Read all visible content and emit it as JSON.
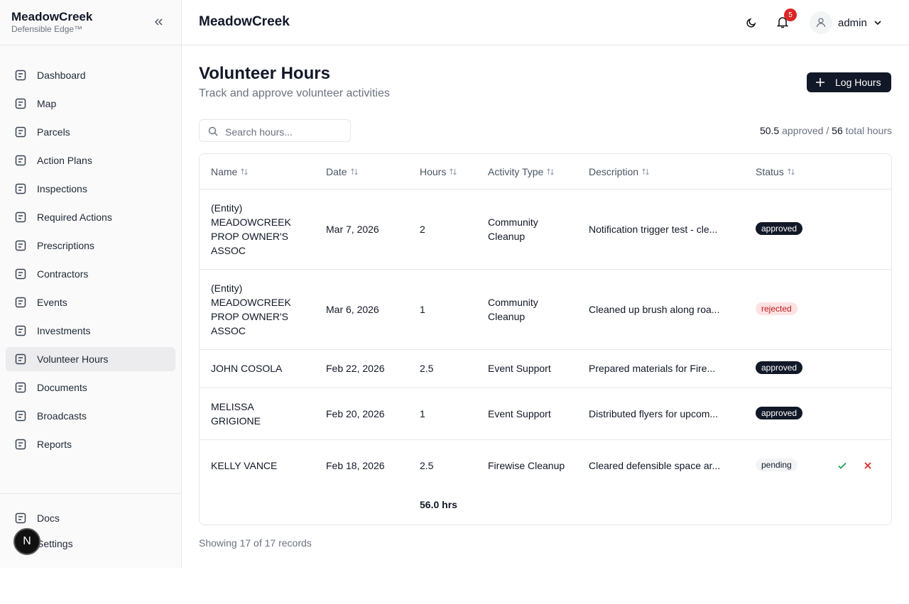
{
  "sidebar": {
    "brand": "MeadowCreek",
    "tagline": "Defensible Edge™",
    "nav": [
      "Dashboard",
      "Map",
      "Parcels",
      "Action Plans",
      "Inspections",
      "Required Actions",
      "Prescriptions",
      "Contractors",
      "Events",
      "Investments",
      "Volunteer Hours",
      "Documents",
      "Broadcasts",
      "Reports"
    ],
    "active": 10,
    "footer": [
      "Docs",
      "Settings"
    ],
    "badge": "N"
  },
  "header": {
    "title": "MeadowCreek",
    "notifications": "5",
    "user": "admin"
  },
  "page": {
    "title": "Volunteer Hours",
    "subtitle": "Track and approve volunteer activities",
    "action": "Log Hours",
    "search_placeholder": "Search hours...",
    "summary": {
      "approved": "50.5",
      "approved_label": "approved /",
      "total": "56",
      "total_label": "total hours"
    }
  },
  "table": {
    "columns": [
      "Name",
      "Date",
      "Hours",
      "Activity Type",
      "Description",
      "Status"
    ],
    "rows": [
      {
        "name": "(Entity) MEADOWCREEK PROP OWNER'S ASSOC",
        "date": "Mar 7, 2026",
        "hours": "2",
        "activity": "Community Cleanup",
        "description": "Notification trigger test - cle...",
        "status": "approved",
        "badge": {
          "bg": "#111827",
          "fg": "#ffffff"
        },
        "has_actions": false
      },
      {
        "name": "(Entity) MEADOWCREEK PROP OWNER'S ASSOC",
        "date": "Mar 6, 2026",
        "hours": "1",
        "activity": "Community Cleanup",
        "description": "Cleaned up brush along roa...",
        "status": "rejected",
        "badge": {
          "bg": "#fee2e2",
          "fg": "#b91c1c"
        },
        "has_actions": false
      },
      {
        "name": "JOHN COSOLA",
        "date": "Feb 22, 2026",
        "hours": "2.5",
        "activity": "Event Support",
        "description": "Prepared materials for Fire...",
        "status": "approved",
        "badge": {
          "bg": "#111827",
          "fg": "#ffffff"
        },
        "has_actions": false
      },
      {
        "name": "MELISSA GRIGIONE",
        "date": "Feb 20, 2026",
        "hours": "1",
        "activity": "Event Support",
        "description": "Distributed flyers for upcom...",
        "status": "approved",
        "badge": {
          "bg": "#111827",
          "fg": "#ffffff"
        },
        "has_actions": false
      },
      {
        "name": "KELLY VANCE",
        "date": "Feb 18, 2026",
        "hours": "2.5",
        "activity": "Firewise Cleanup",
        "description": "Cleared defensible space ar...",
        "status": "pending",
        "badge": {
          "bg": "#f3f4f6",
          "fg": "#111827"
        },
        "has_actions": true
      }
    ],
    "total": "56.0 hrs"
  },
  "footer_text": "Showing 17 of 17 records"
}
